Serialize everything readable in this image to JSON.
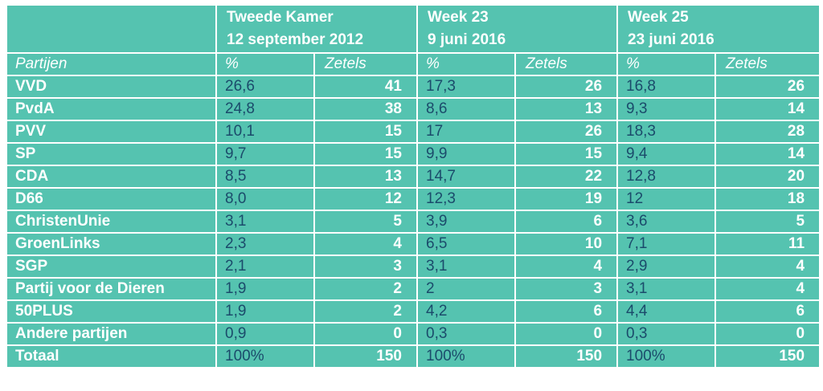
{
  "chart_data": {
    "type": "table",
    "header_groups": [
      {
        "line1": "Tweede Kamer",
        "line2": "12 september 2012"
      },
      {
        "line1": "Week 23",
        "line2": "9 juni 2016"
      },
      {
        "line1": "Week 25",
        "line2": "23 juni 2016"
      }
    ],
    "subheader": {
      "party": "Partijen",
      "pct": "%",
      "seats": "Zetels"
    },
    "rows": [
      {
        "party": "VVD",
        "values": [
          "26,6",
          "41",
          "17,3",
          "26",
          "16,8",
          "26"
        ]
      },
      {
        "party": "PvdA",
        "values": [
          "24,8",
          "38",
          "8,6",
          "13",
          "9,3",
          "14"
        ]
      },
      {
        "party": "PVV",
        "values": [
          "10,1",
          "15",
          "17",
          "26",
          "18,3",
          "28"
        ]
      },
      {
        "party": "SP",
        "values": [
          "9,7",
          "15",
          "9,9",
          "15",
          "9,4",
          "14"
        ]
      },
      {
        "party": "CDA",
        "values": [
          "8,5",
          "13",
          "14,7",
          "22",
          "12,8",
          "20"
        ]
      },
      {
        "party": "D66",
        "values": [
          "8,0",
          "12",
          "12,3",
          "19",
          "12",
          "18"
        ]
      },
      {
        "party": "ChristenUnie",
        "values": [
          "3,1",
          "5",
          "3,9",
          "6",
          "3,6",
          "5"
        ]
      },
      {
        "party": "GroenLinks",
        "values": [
          "2,3",
          "4",
          "6,5",
          "10",
          "7,1",
          "11"
        ]
      },
      {
        "party": "SGP",
        "values": [
          "2,1",
          "3",
          "3,1",
          "4",
          "2,9",
          "4"
        ]
      },
      {
        "party": "Partij voor de Dieren",
        "values": [
          "1,9",
          "2",
          "2",
          "3",
          "3,1",
          "4"
        ]
      },
      {
        "party": "50PLUS",
        "values": [
          "1,9",
          "2",
          "4,2",
          "6",
          "4,4",
          "6"
        ]
      },
      {
        "party": "Andere partijen",
        "values": [
          "0,9",
          "0",
          "0,3",
          "0",
          "0,3",
          "0"
        ]
      },
      {
        "party": "Totaal",
        "values": [
          "100%",
          "150",
          "100%",
          "150",
          "100%",
          "150"
        ]
      }
    ]
  },
  "colors": {
    "cell_background": "#55c3b0",
    "percent_text": "#1b4b6b",
    "text": "#ffffff",
    "grid": "#ffffff"
  }
}
